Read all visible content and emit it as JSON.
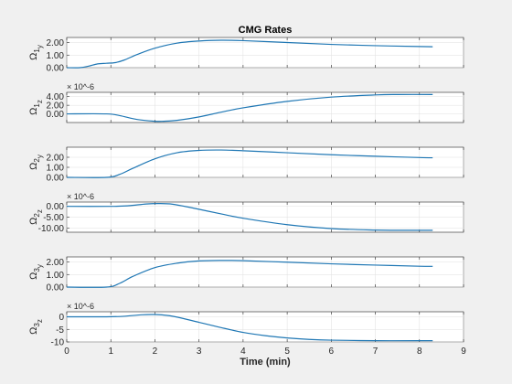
{
  "colors": {
    "line": "#1f77b4",
    "figure_background": "#f0f0f0",
    "axes_background": "#ffffff"
  },
  "figure": {
    "title": "CMG Rates",
    "xlabel": "Time (min)",
    "exponent_label": "× 10^-6"
  },
  "chart_data": [
    {
      "type": "line",
      "ylabel_main": "Ω",
      "ylabel_sub1": "1",
      "ylabel_sub2": "y",
      "xlim": [
        0,
        9
      ],
      "ylim": [
        0,
        2.4
      ],
      "yticks": [
        0,
        1,
        2
      ],
      "ytick_labels": [
        "0.00",
        "1.00",
        "2.00"
      ],
      "exponent": false,
      "grid": true,
      "x": [
        0,
        0.3,
        0.5,
        0.7,
        0.9,
        1.1,
        1.3,
        1.6,
        2.0,
        2.5,
        3.0,
        3.5,
        4.0,
        5.0,
        6.0,
        7.0,
        8.0,
        8.3
      ],
      "y": [
        0,
        0,
        0.12,
        0.3,
        0.35,
        0.4,
        0.6,
        1.05,
        1.55,
        1.95,
        2.12,
        2.18,
        2.15,
        2.0,
        1.85,
        1.75,
        1.68,
        1.66
      ]
    },
    {
      "type": "line",
      "ylabel_main": "Ω",
      "ylabel_sub1": "1",
      "ylabel_sub2": "z",
      "xlim": [
        0,
        9
      ],
      "ylim": [
        -2,
        5
      ],
      "yticks": [
        0,
        2,
        4
      ],
      "ytick_labels": [
        "0.00",
        "2.00",
        "4.00"
      ],
      "exponent": true,
      "grid": true,
      "x": [
        0,
        0.9,
        1.2,
        1.6,
        2.0,
        2.2,
        2.5,
        3.0,
        3.5,
        4.0,
        5.0,
        6.0,
        7.0,
        7.5,
        8.3
      ],
      "y": [
        0,
        0,
        -0.4,
        -1.3,
        -1.7,
        -1.7,
        -1.5,
        -0.7,
        0.4,
        1.4,
        2.9,
        3.9,
        4.4,
        4.5,
        4.5
      ]
    },
    {
      "type": "line",
      "ylabel_main": "Ω",
      "ylabel_sub1": "2",
      "ylabel_sub2": "y",
      "xlim": [
        0,
        9
      ],
      "ylim": [
        0,
        3
      ],
      "yticks": [
        0,
        1,
        2
      ],
      "ytick_labels": [
        "0.00",
        "1.00",
        "2.00"
      ],
      "exponent": false,
      "grid": true,
      "x": [
        0,
        0.9,
        1.2,
        1.5,
        2.0,
        2.5,
        3.0,
        3.5,
        4.0,
        5.0,
        6.0,
        7.0,
        8.0,
        8.3
      ],
      "y": [
        0,
        0,
        0.3,
        0.9,
        1.85,
        2.45,
        2.68,
        2.72,
        2.65,
        2.45,
        2.25,
        2.1,
        1.97,
        1.95
      ]
    },
    {
      "type": "line",
      "ylabel_main": "Ω",
      "ylabel_sub1": "2",
      "ylabel_sub2": "z",
      "xlim": [
        0,
        9
      ],
      "ylim": [
        -12,
        2
      ],
      "yticks": [
        -10,
        -5,
        0
      ],
      "ytick_labels": [
        "-10.00",
        "-5.00",
        "0.00"
      ],
      "exponent": true,
      "grid": true,
      "x": [
        0,
        1.0,
        1.4,
        1.8,
        2.1,
        2.4,
        2.8,
        3.5,
        4.0,
        5.0,
        6.0,
        7.0,
        7.5,
        8.3
      ],
      "y": [
        0,
        0,
        0.3,
        1.1,
        1.3,
        1.0,
        -0.5,
        -3.5,
        -5.5,
        -8.5,
        -10.3,
        -11.0,
        -11.1,
        -11.1
      ]
    },
    {
      "type": "line",
      "ylabel_main": "Ω",
      "ylabel_sub1": "3",
      "ylabel_sub2": "y",
      "xlim": [
        0,
        9
      ],
      "ylim": [
        0,
        2.4
      ],
      "yticks": [
        0,
        1,
        2
      ],
      "ytick_labels": [
        "0.00",
        "1.00",
        "2.00"
      ],
      "exponent": false,
      "grid": true,
      "x": [
        0,
        0.9,
        1.2,
        1.5,
        2.0,
        2.5,
        3.0,
        3.5,
        4.0,
        5.0,
        6.0,
        7.0,
        8.0,
        8.3
      ],
      "y": [
        0,
        0,
        0.3,
        0.85,
        1.55,
        1.9,
        2.08,
        2.12,
        2.1,
        1.98,
        1.85,
        1.75,
        1.66,
        1.65
      ]
    },
    {
      "type": "line",
      "ylabel_main": "Ω",
      "ylabel_sub1": "3",
      "ylabel_sub2": "z",
      "xlim": [
        0,
        9
      ],
      "ylim": [
        -10,
        2
      ],
      "yticks": [
        -10,
        -5,
        0
      ],
      "ytick_labels": [
        "-10",
        "-5",
        "0"
      ],
      "exponent": true,
      "grid": true,
      "xticks": [
        0,
        1,
        2,
        3,
        4,
        5,
        6,
        7,
        8,
        9
      ],
      "xtick_labels": [
        "0",
        "1",
        "2",
        "3",
        "4",
        "5",
        "6",
        "7",
        "8",
        "9"
      ],
      "x": [
        0,
        0.9,
        1.3,
        1.7,
        2.0,
        2.3,
        2.6,
        3.0,
        3.5,
        4.0,
        4.5,
        5.0,
        5.5,
        6.0,
        7.0,
        8.0,
        8.3
      ],
      "y": [
        0,
        0,
        0.2,
        0.8,
        0.9,
        0.5,
        -0.5,
        -2.2,
        -4.3,
        -6.2,
        -7.5,
        -8.4,
        -9.0,
        -9.3,
        -9.5,
        -9.5,
        -9.5
      ]
    }
  ]
}
